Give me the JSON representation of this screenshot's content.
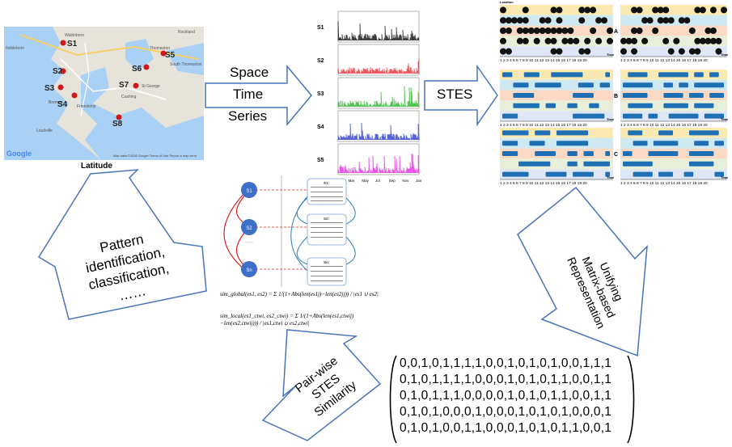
{
  "map": {
    "caption": "Latitude",
    "stations": [
      "S1",
      "S2",
      "S3",
      "S4",
      "S5",
      "S6",
      "S7",
      "S8"
    ],
    "footer": "Map data ©2018 Google   Terms of Use   Report a map error",
    "logo": "Google",
    "places": [
      "Waldoboro",
      "Nobleboro",
      "Rockland",
      "Thomaston",
      "South Thomaston",
      "Friendship",
      "St George",
      "Bremen",
      "Cushing",
      "Loudville"
    ]
  },
  "arrows": {
    "space_time_series": [
      "Space",
      "Time",
      "Series"
    ],
    "stes": "STES",
    "unifying": [
      "Unifying",
      "Matrix-based",
      "Representation"
    ],
    "pairwise": [
      "Pair-wise",
      "STES",
      "Similarity"
    ],
    "pattern": [
      "Pattern",
      "identification,",
      "classification,",
      "……"
    ]
  },
  "series_chart": {
    "labels": [
      "S1",
      "S2",
      "S3",
      "S4",
      "S5"
    ],
    "colors": [
      "#000000",
      "#e8202a",
      "#19b019",
      "#1f2fc8",
      "#e21ee0"
    ],
    "months": [
      "Jan",
      "Mar",
      "May",
      "Jul",
      "Sep",
      "Nov",
      "Jan"
    ]
  },
  "stes_panels": {
    "section_labels": [
      "A",
      "B",
      "C"
    ],
    "axis_label": "Time",
    "top_label": "Location",
    "ticks": "1 2 3 4 5 6 7 8 9 10 11 12 13 14 15 16 17 18 19 20"
  },
  "network": {
    "nodes": [
      "S1",
      "S2",
      "Sn"
    ],
    "dots": "……",
    "boxes": [
      "S1:",
      "S2:",
      "Sn:"
    ]
  },
  "formulas": {
    "global": "sim_global(es1, es2) = Σ 1/(1+Abs(len(es1j)−len(es2j))) / |es1 ∪ es2|",
    "local": "sim_local(es1_ctwi, es2_ctwi) = Σ 1/(1+Abs(len(es1,ctwij)−len(es2,ctwij))) / |es1,ctwi ∪ es2,ctwi|"
  },
  "matrix": {
    "rows": [
      "0,0,1,0,1,1,1,1,0,0,1,0,1,0,1,0,0,1,1,1",
      "0,1,0,1,1,1,1,0,0,0,1,0,1,0,1,1,0,0,1,1",
      "0,1,0,1,1,1,0,0,0,0,1,0,1,0,1,1,0,0,1,1",
      "0,1,0,1,0,0,0,1,0,0,0,1,0,1,0,1,0,0,0,1",
      "0,1,0,1,0,0,1,1,0,0,0,1,0,1,0,1,1,0,0,1"
    ]
  }
}
